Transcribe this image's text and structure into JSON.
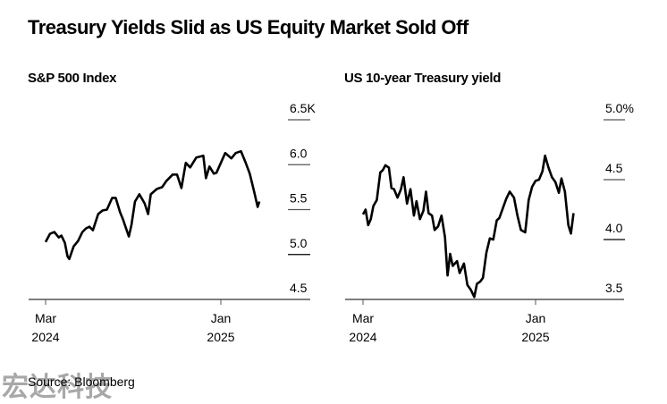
{
  "title": "Treasury Yields Slid as US Equity Market Sold Off",
  "source": "Source: Bloomberg",
  "watermark": "宏达科技",
  "chart_data": [
    {
      "type": "line",
      "title": "S&P 500 Index",
      "xlabel": "",
      "ylabel": "",
      "y_unit_suffix": "K",
      "ylim": [
        4500,
        6500
      ],
      "yticks": [
        4500,
        5000,
        5500,
        6000,
        6500
      ],
      "ytick_labels": [
        "4.5",
        "5.0",
        "5.5",
        "6.0",
        "6.5K"
      ],
      "xlim": [
        "2024-02-01",
        "2025-04-15"
      ],
      "xticks": [
        {
          "date": "2024-03-01",
          "label": [
            "Mar",
            "2024"
          ]
        },
        {
          "date": "2025-01-01",
          "label": [
            "Jan",
            "2025"
          ]
        }
      ],
      "grid": "horizontal",
      "legend": "none",
      "series": [
        {
          "name": "S&P 500 Index",
          "x": [
            0.0,
            0.25,
            0.5,
            0.75,
            0.9,
            1.1,
            1.25,
            1.35,
            1.6,
            1.85,
            2.1,
            2.3,
            2.5,
            2.7,
            3.0,
            3.25,
            3.5,
            3.8,
            4.0,
            4.25,
            4.4,
            4.75,
            4.9,
            5.1,
            5.35,
            5.65,
            5.85,
            6.0,
            6.35,
            6.65,
            6.9,
            7.25,
            7.5,
            7.75,
            8.0,
            8.25,
            8.6,
            9.0,
            9.15,
            9.35,
            9.6,
            9.75,
            10.25,
            10.6,
            10.85,
            11.15,
            11.4,
            11.65,
            11.9,
            12.1,
            12.2
          ],
          "values": [
            5140,
            5230,
            5250,
            5190,
            5210,
            5130,
            4980,
            4950,
            5090,
            5150,
            5250,
            5290,
            5310,
            5270,
            5450,
            5490,
            5500,
            5630,
            5630,
            5470,
            5400,
            5200,
            5330,
            5590,
            5670,
            5570,
            5450,
            5670,
            5730,
            5750,
            5820,
            5890,
            5890,
            5740,
            6020,
            5970,
            6080,
            6100,
            5850,
            5980,
            5900,
            5910,
            6130,
            6070,
            6130,
            6150,
            6030,
            5900,
            5700,
            5530,
            5590
          ]
        }
      ]
    },
    {
      "type": "line",
      "title": "US 10-year Treasury yield",
      "xlabel": "",
      "ylabel": "",
      "y_unit_suffix": "%",
      "ylim": [
        3.5,
        5.0
      ],
      "yticks": [
        3.5,
        4.0,
        4.5,
        5.0
      ],
      "ytick_labels": [
        "3.5",
        "4.0",
        "4.5",
        "5.0%"
      ],
      "xlim": [
        "2024-02-01",
        "2025-04-15"
      ],
      "xticks": [
        {
          "date": "2024-03-01",
          "label": [
            "Mar",
            "2024"
          ]
        },
        {
          "date": "2025-01-01",
          "label": [
            "Jan",
            "2025"
          ]
        }
      ],
      "grid": "horizontal",
      "legend": "none",
      "series": [
        {
          "name": "US 10-year Treasury yield",
          "x": [
            0.0,
            0.15,
            0.3,
            0.45,
            0.6,
            0.8,
            1.0,
            1.15,
            1.3,
            1.5,
            1.65,
            1.8,
            2.0,
            2.2,
            2.35,
            2.55,
            2.75,
            2.95,
            3.1,
            3.3,
            3.5,
            3.65,
            3.8,
            4.0,
            4.15,
            4.35,
            4.55,
            4.75,
            4.9,
            5.05,
            5.2,
            5.45,
            5.6,
            5.85,
            6.05,
            6.25,
            6.45,
            6.6,
            6.8,
            6.95,
            7.15,
            7.35,
            7.55,
            7.75,
            7.9,
            8.1,
            8.3,
            8.5,
            8.75,
            8.95,
            9.15,
            9.4,
            9.6,
            9.8,
            10.0,
            10.2,
            10.4,
            10.55,
            10.75,
            10.95,
            11.15,
            11.35,
            11.5,
            11.7,
            11.9,
            12.05,
            12.2
          ],
          "values": [
            4.21,
            4.25,
            4.12,
            4.17,
            4.28,
            4.33,
            4.56,
            4.58,
            4.62,
            4.6,
            4.43,
            4.42,
            4.35,
            4.42,
            4.52,
            4.3,
            4.42,
            4.2,
            4.32,
            4.17,
            4.24,
            4.4,
            4.22,
            4.2,
            4.08,
            4.11,
            4.2,
            4.02,
            3.7,
            3.88,
            3.78,
            3.82,
            3.72,
            3.8,
            3.62,
            3.58,
            3.52,
            3.63,
            3.65,
            3.68,
            3.89,
            4.01,
            4.0,
            4.16,
            4.18,
            4.26,
            4.34,
            4.4,
            4.35,
            4.2,
            4.08,
            4.06,
            4.33,
            4.44,
            4.49,
            4.5,
            4.57,
            4.7,
            4.6,
            4.52,
            4.48,
            4.39,
            4.51,
            4.4,
            4.12,
            4.05,
            4.22
          ]
        }
      ]
    }
  ]
}
